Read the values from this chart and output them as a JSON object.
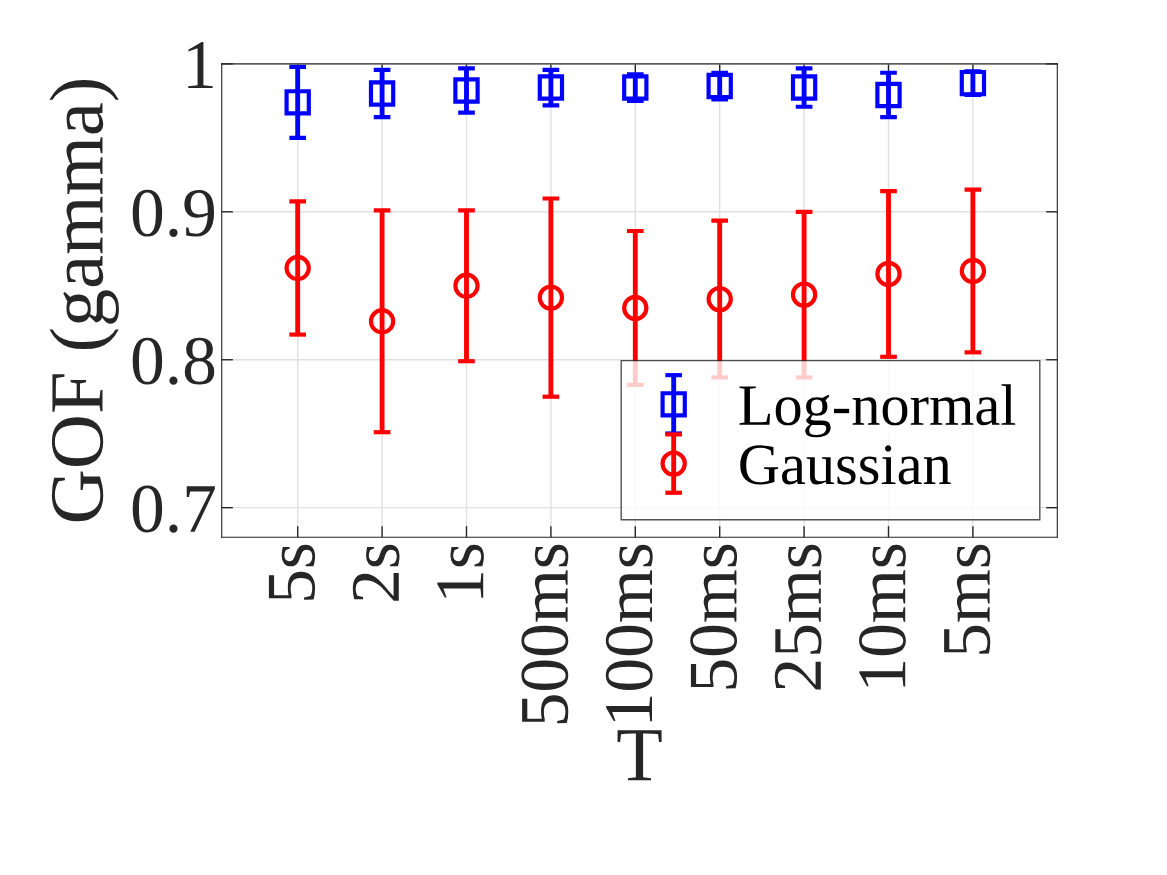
{
  "chart_data": {
    "type": "scatter",
    "xlabel": "T",
    "ylabel": "GOF (gamma)",
    "categories": [
      "5s",
      "2s",
      "1s",
      "500ms",
      "100ms",
      "50ms",
      "25ms",
      "10ms",
      "5ms"
    ],
    "series": [
      {
        "name": "Log-normal",
        "color": "#0000ff",
        "marker": "square",
        "values": [
          0.974,
          0.98,
          0.982,
          0.984,
          0.984,
          0.985,
          0.984,
          0.979,
          0.987
        ],
        "errors": [
          0.024,
          0.016,
          0.015,
          0.012,
          0.009,
          0.009,
          0.013,
          0.015,
          0.008
        ]
      },
      {
        "name": "Gaussian",
        "color": "#ff0000",
        "marker": "circle",
        "values": [
          0.862,
          0.826,
          0.85,
          0.842,
          0.835,
          0.841,
          0.844,
          0.858,
          0.86
        ],
        "errors": [
          0.045,
          0.075,
          0.051,
          0.067,
          0.052,
          0.053,
          0.056,
          0.056,
          0.055
        ]
      }
    ],
    "ylim": [
      0.68,
      1
    ],
    "yticks": [
      0.7,
      0.8,
      0.9,
      1
    ],
    "grid": true,
    "legend": "bottom right"
  }
}
